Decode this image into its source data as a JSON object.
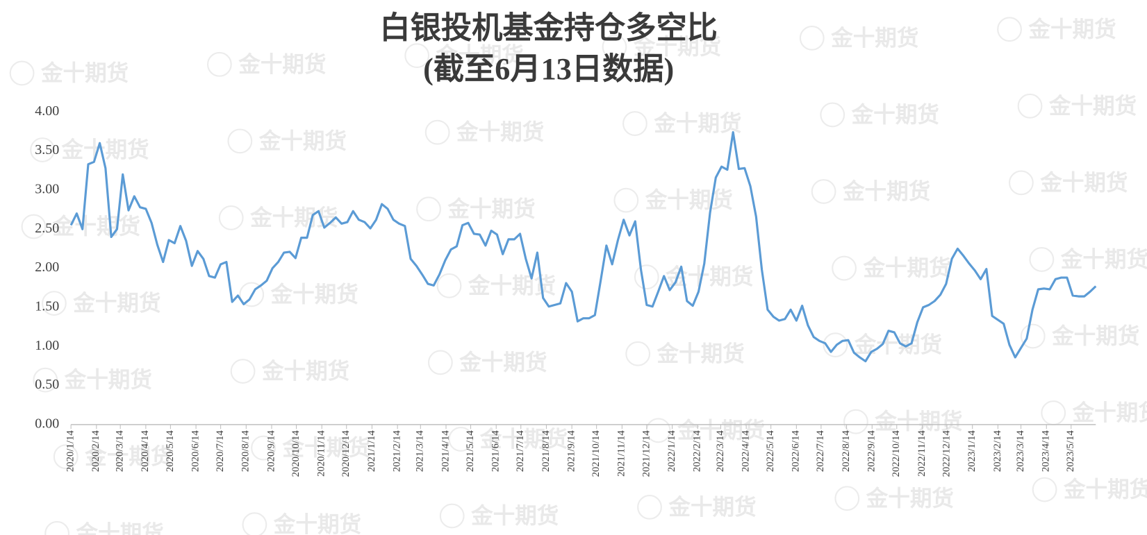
{
  "chart_data": {
    "type": "line",
    "title": "白银投机基金持仓多空比",
    "subtitle": "(截至6月13日数据)",
    "watermark": "金十期货",
    "x": [
      "2020/1/14",
      "2020/1/21",
      "2020/1/28",
      "2020/2/4",
      "2020/2/11",
      "2020/2/18",
      "2020/2/25",
      "2020/3/3",
      "2020/3/10",
      "2020/3/17",
      "2020/3/24",
      "2020/3/31",
      "2020/4/7",
      "2020/4/14",
      "2020/4/21",
      "2020/4/28",
      "2020/5/5",
      "2020/5/12",
      "2020/5/19",
      "2020/5/26",
      "2020/6/2",
      "2020/6/9",
      "2020/6/16",
      "2020/6/23",
      "2020/6/30",
      "2020/7/7",
      "2020/7/14",
      "2020/7/21",
      "2020/7/28",
      "2020/8/4",
      "2020/8/11",
      "2020/8/18",
      "2020/8/25",
      "2020/9/1",
      "2020/9/8",
      "2020/9/15",
      "2020/9/22",
      "2020/9/29",
      "2020/10/6",
      "2020/10/13",
      "2020/10/20",
      "2020/10/27",
      "2020/11/3",
      "2020/11/10",
      "2020/11/17",
      "2020/11/24",
      "2020/12/1",
      "2020/12/8",
      "2020/12/15",
      "2020/12/22",
      "2020/12/29",
      "2021/1/5",
      "2021/1/12",
      "2021/1/19",
      "2021/1/26",
      "2021/2/2",
      "2021/2/9",
      "2021/2/16",
      "2021/2/23",
      "2021/3/2",
      "2021/3/9",
      "2021/3/16",
      "2021/3/23",
      "2021/3/30",
      "2021/4/6",
      "2021/4/13",
      "2021/4/20",
      "2021/4/27",
      "2021/5/4",
      "2021/5/11",
      "2021/5/18",
      "2021/5/25",
      "2021/6/1",
      "2021/6/8",
      "2021/6/15",
      "2021/6/22",
      "2021/6/29",
      "2021/7/6",
      "2021/7/13",
      "2021/7/20",
      "2021/7/27",
      "2021/8/3",
      "2021/8/10",
      "2021/8/17",
      "2021/8/24",
      "2021/8/31",
      "2021/9/7",
      "2021/9/14",
      "2021/9/21",
      "2021/9/28",
      "2021/10/5",
      "2021/10/12",
      "2021/10/19",
      "2021/10/26",
      "2021/11/2",
      "2021/11/9",
      "2021/11/16",
      "2021/11/23",
      "2021/11/30",
      "2021/12/7",
      "2021/12/14",
      "2021/12/21",
      "2021/12/28",
      "2022/1/4",
      "2022/1/11",
      "2022/1/18",
      "2022/1/25",
      "2022/2/1",
      "2022/2/8",
      "2022/2/15",
      "2022/2/22",
      "2022/3/1",
      "2022/3/8",
      "2022/3/15",
      "2022/3/22",
      "2022/3/29",
      "2022/4/5",
      "2022/4/12",
      "2022/4/19",
      "2022/4/26",
      "2022/5/3",
      "2022/5/10",
      "2022/5/17",
      "2022/5/24",
      "2022/5/31",
      "2022/6/7",
      "2022/6/14",
      "2022/6/21",
      "2022/6/28",
      "2022/7/5",
      "2022/7/12",
      "2022/7/19",
      "2022/7/26",
      "2022/8/2",
      "2022/8/9",
      "2022/8/16",
      "2022/8/23",
      "2022/8/30",
      "2022/9/6",
      "2022/9/13",
      "2022/9/20",
      "2022/9/27",
      "2022/10/4",
      "2022/10/11",
      "2022/10/18",
      "2022/10/25",
      "2022/11/1",
      "2022/11/8",
      "2022/11/15",
      "2022/11/22",
      "2022/11/29",
      "2022/12/6",
      "2022/12/13",
      "2022/12/20",
      "2022/12/27",
      "2023/1/3",
      "2023/1/10",
      "2023/1/17",
      "2023/1/24",
      "2023/1/31",
      "2023/2/7",
      "2023/2/14",
      "2023/2/21",
      "2023/2/28",
      "2023/3/7",
      "2023/3/14",
      "2023/3/21",
      "2023/3/28",
      "2023/4/4",
      "2023/4/11",
      "2023/4/18",
      "2023/4/25",
      "2023/5/2",
      "2023/5/9",
      "2023/5/16",
      "2023/5/23",
      "2023/5/30",
      "2023/6/6",
      "2023/6/13"
    ],
    "series": [
      {
        "color": "#5b9bd5",
        "values": [
          2.55,
          2.7,
          2.5,
          3.33,
          3.36,
          3.6,
          3.28,
          2.4,
          2.5,
          3.2,
          2.74,
          2.92,
          2.78,
          2.76,
          2.58,
          2.3,
          2.08,
          2.36,
          2.32,
          2.54,
          2.35,
          2.03,
          2.22,
          2.12,
          1.9,
          1.88,
          2.05,
          2.08,
          1.57,
          1.65,
          1.54,
          1.6,
          1.73,
          1.78,
          1.84,
          2.0,
          2.08,
          2.2,
          2.21,
          2.13,
          2.39,
          2.39,
          2.68,
          2.73,
          2.52,
          2.58,
          2.65,
          2.57,
          2.59,
          2.73,
          2.62,
          2.59,
          2.51,
          2.62,
          2.82,
          2.76,
          2.62,
          2.57,
          2.54,
          2.12,
          2.03,
          1.92,
          1.8,
          1.78,
          1.92,
          2.1,
          2.24,
          2.28,
          2.55,
          2.58,
          2.44,
          2.43,
          2.29,
          2.48,
          2.43,
          2.18,
          2.37,
          2.37,
          2.44,
          2.12,
          1.87,
          2.2,
          1.62,
          1.51,
          1.53,
          1.55,
          1.81,
          1.7,
          1.32,
          1.36,
          1.36,
          1.4,
          1.84,
          2.29,
          2.05,
          2.36,
          2.62,
          2.42,
          2.6,
          1.98,
          1.53,
          1.51,
          1.7,
          1.9,
          1.72,
          1.82,
          2.02,
          1.58,
          1.52,
          1.7,
          2.06,
          2.71,
          3.16,
          3.3,
          3.26,
          3.74,
          3.27,
          3.28,
          3.05,
          2.66,
          1.98,
          1.47,
          1.38,
          1.33,
          1.35,
          1.47,
          1.33,
          1.52,
          1.27,
          1.12,
          1.07,
          1.04,
          0.93,
          1.02,
          1.07,
          1.08,
          0.92,
          0.86,
          0.81,
          0.93,
          0.97,
          1.03,
          1.2,
          1.18,
          1.04,
          1.0,
          1.04,
          1.31,
          1.5,
          1.53,
          1.58,
          1.66,
          1.8,
          2.12,
          2.25,
          2.16,
          2.06,
          1.97,
          1.86,
          1.99,
          1.39,
          1.34,
          1.29,
          1.02,
          0.86,
          0.98,
          1.1,
          1.47,
          1.73,
          1.74,
          1.73,
          1.86,
          1.88,
          1.88,
          1.65,
          1.64,
          1.64,
          1.7,
          1.77
        ]
      }
    ],
    "xlim": [
      "2020/1/14",
      "2023/6/13"
    ],
    "xticks": [
      "2020/1/14",
      "2020/2/14",
      "2020/3/14",
      "2020/4/14",
      "2020/5/14",
      "2020/6/14",
      "2020/7/14",
      "2020/8/14",
      "2020/9/14",
      "2020/10/14",
      "2020/11/14",
      "2020/12/14",
      "2021/1/14",
      "2021/2/14",
      "2021/3/14",
      "2021/4/14",
      "2021/5/14",
      "2021/6/14",
      "2021/7/14",
      "2021/8/14",
      "2021/9/14",
      "2021/10/14",
      "2021/11/14",
      "2021/12/14",
      "2022/1/14",
      "2022/2/14",
      "2022/3/14",
      "2022/4/14",
      "2022/5/14",
      "2022/6/14",
      "2022/7/14",
      "2022/8/14",
      "2022/9/14",
      "2022/10/14",
      "2022/11/14",
      "2022/12/14",
      "2023/1/14",
      "2023/2/14",
      "2023/3/14",
      "2023/4/14",
      "2023/5/14"
    ],
    "ylim": [
      0,
      4
    ],
    "yticks": [
      {
        "value": 0,
        "label": "0.00"
      },
      {
        "value": 0.5,
        "label": "0.50"
      },
      {
        "value": 1,
        "label": "1.00"
      },
      {
        "value": 1.5,
        "label": "1.50"
      },
      {
        "value": 2,
        "label": "2.00"
      },
      {
        "value": 2.5,
        "label": "2.50"
      },
      {
        "value": 3,
        "label": "3.00"
      },
      {
        "value": 3.5,
        "label": "3.50"
      },
      {
        "value": 4,
        "label": "4.00"
      }
    ],
    "grid": false
  }
}
